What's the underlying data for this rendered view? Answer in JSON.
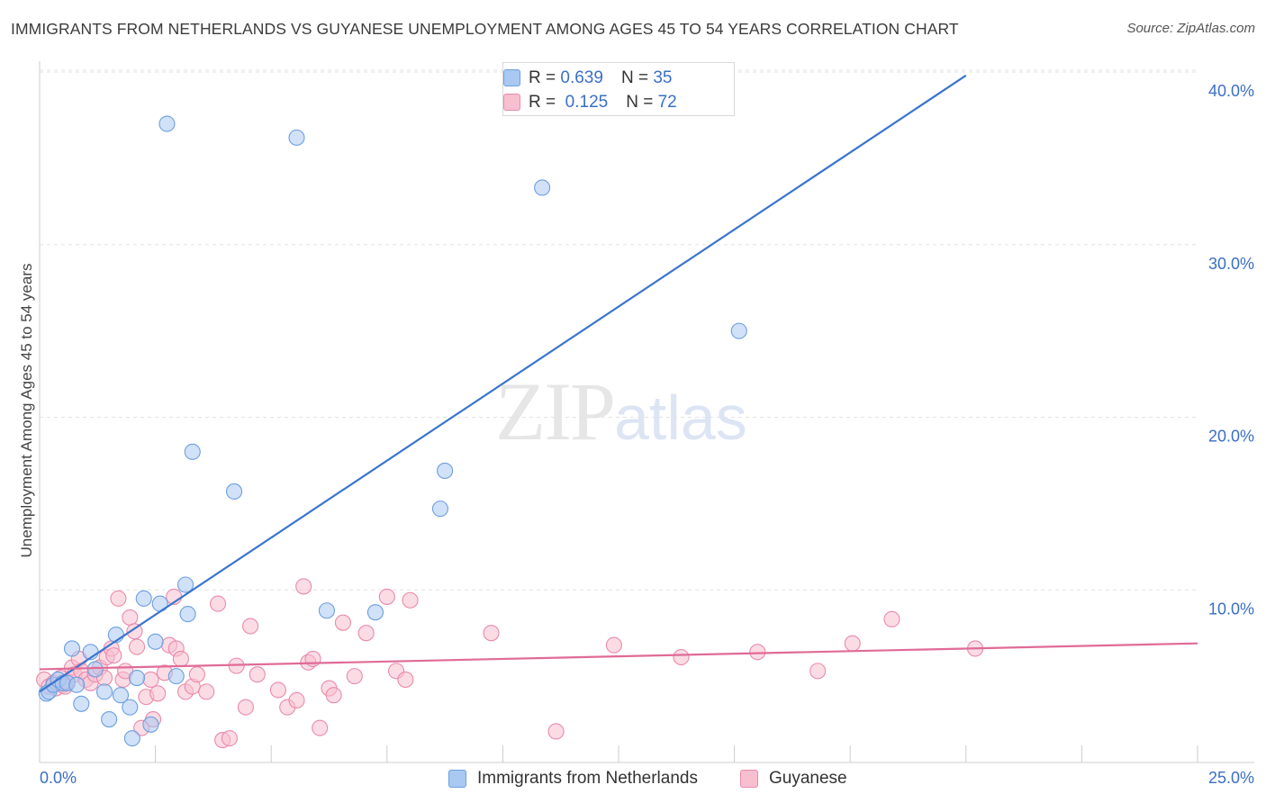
{
  "header": {
    "title": "IMMIGRANTS FROM NETHERLANDS VS GUYANESE UNEMPLOYMENT AMONG AGES 45 TO 54 YEARS CORRELATION CHART",
    "source": "Source: ZipAtlas.com"
  },
  "watermark": {
    "zip": "ZIP",
    "atlas": "atlas"
  },
  "legend_top": {
    "rows": [
      {
        "r_label": "R =",
        "r_value": "0.639",
        "n_label": "N =",
        "n_value": "35"
      },
      {
        "r_label": "R =",
        "r_value": "0.125",
        "n_label": "N =",
        "n_value": "72"
      }
    ]
  },
  "colors": {
    "blue_fill": "#a9c8f2",
    "blue_stroke": "#6d9fe0",
    "blue_line": "#3a75cc",
    "pink_fill": "#f7bfd0",
    "pink_stroke": "#e98aab",
    "pink_line": "#e06b96",
    "grid": "#e3e3e3",
    "tick_label": "#3a6fc4"
  },
  "chart_data": {
    "type": "scatter",
    "title": "IMMIGRANTS FROM NETHERLANDS VS GUYANESE UNEMPLOYMENT AMONG AGES 45 TO 54 YEARS CORRELATION CHART",
    "xlabel": "",
    "ylabel": "Unemployment Among Ages 45 to 54 years",
    "xlim": [
      0,
      25
    ],
    "ylim": [
      0,
      40
    ],
    "x_tick_labels": [
      "0.0%",
      "25.0%"
    ],
    "y_ticks": [
      10,
      20,
      30,
      40
    ],
    "y_tick_labels": [
      "10.0%",
      "20.0%",
      "30.0%",
      "40.0%"
    ],
    "legend_placement": "top-center",
    "series": [
      {
        "name": "Immigrants from Netherlands",
        "color": "blue",
        "r": 0.639,
        "n": 35,
        "trendline": {
          "x": [
            0,
            20
          ],
          "y": [
            4.1,
            39.8
          ]
        },
        "points": [
          [
            0.15,
            4.0
          ],
          [
            0.2,
            4.1
          ],
          [
            0.3,
            4.5
          ],
          [
            0.4,
            4.8
          ],
          [
            0.5,
            4.6
          ],
          [
            0.6,
            4.6
          ],
          [
            0.7,
            6.6
          ],
          [
            0.8,
            4.5
          ],
          [
            0.9,
            3.4
          ],
          [
            1.1,
            6.4
          ],
          [
            1.2,
            5.4
          ],
          [
            1.4,
            4.1
          ],
          [
            1.5,
            2.5
          ],
          [
            1.65,
            7.4
          ],
          [
            1.75,
            3.9
          ],
          [
            1.95,
            3.2
          ],
          [
            2.0,
            1.4
          ],
          [
            2.1,
            4.9
          ],
          [
            2.25,
            9.5
          ],
          [
            2.4,
            2.2
          ],
          [
            2.5,
            7.0
          ],
          [
            2.6,
            9.2
          ],
          [
            2.75,
            37.0
          ],
          [
            2.95,
            5.0
          ],
          [
            3.15,
            10.3
          ],
          [
            3.2,
            8.6
          ],
          [
            3.3,
            18.0
          ],
          [
            4.2,
            15.7
          ],
          [
            5.55,
            36.2
          ],
          [
            6.2,
            8.8
          ],
          [
            7.25,
            8.7
          ],
          [
            8.65,
            14.7
          ],
          [
            8.75,
            16.9
          ],
          [
            10.85,
            33.3
          ],
          [
            15.1,
            25.0
          ]
        ]
      },
      {
        "name": "Guyanese",
        "color": "pink",
        "r": 0.125,
        "n": 72,
        "trendline": {
          "x": [
            0,
            25
          ],
          "y": [
            5.4,
            6.9
          ]
        },
        "points": [
          [
            0.1,
            4.8
          ],
          [
            0.2,
            4.4
          ],
          [
            0.3,
            4.6
          ],
          [
            0.35,
            4.3
          ],
          [
            0.45,
            4.9
          ],
          [
            0.5,
            4.5
          ],
          [
            0.6,
            4.7
          ],
          [
            0.7,
            5.5
          ],
          [
            0.75,
            5.1
          ],
          [
            0.85,
            6.0
          ],
          [
            0.9,
            5.3
          ],
          [
            1.0,
            4.8
          ],
          [
            1.1,
            4.6
          ],
          [
            1.2,
            5.1
          ],
          [
            1.3,
            5.5
          ],
          [
            1.4,
            4.9
          ],
          [
            1.45,
            6.1
          ],
          [
            1.55,
            6.6
          ],
          [
            1.6,
            6.2
          ],
          [
            1.7,
            9.5
          ],
          [
            1.8,
            4.8
          ],
          [
            1.85,
            5.3
          ],
          [
            1.95,
            8.4
          ],
          [
            2.05,
            7.6
          ],
          [
            2.1,
            6.7
          ],
          [
            2.2,
            2.0
          ],
          [
            2.3,
            3.8
          ],
          [
            2.4,
            4.8
          ],
          [
            2.45,
            2.5
          ],
          [
            2.55,
            4.0
          ],
          [
            2.7,
            5.2
          ],
          [
            2.8,
            6.8
          ],
          [
            2.9,
            9.6
          ],
          [
            2.95,
            6.6
          ],
          [
            3.05,
            6.0
          ],
          [
            3.15,
            4.1
          ],
          [
            3.3,
            4.4
          ],
          [
            3.4,
            5.1
          ],
          [
            3.6,
            4.1
          ],
          [
            3.85,
            9.2
          ],
          [
            3.95,
            1.3
          ],
          [
            4.1,
            1.4
          ],
          [
            4.25,
            5.6
          ],
          [
            4.45,
            3.2
          ],
          [
            4.55,
            7.9
          ],
          [
            4.7,
            5.1
          ],
          [
            5.15,
            4.2
          ],
          [
            5.35,
            3.2
          ],
          [
            5.55,
            3.6
          ],
          [
            5.8,
            5.8
          ],
          [
            5.9,
            6.0
          ],
          [
            6.05,
            2.0
          ],
          [
            6.25,
            4.3
          ],
          [
            6.35,
            3.9
          ],
          [
            6.55,
            8.1
          ],
          [
            6.8,
            5.0
          ],
          [
            7.05,
            7.5
          ],
          [
            7.5,
            9.6
          ],
          [
            7.7,
            5.3
          ],
          [
            7.9,
            4.8
          ],
          [
            8.0,
            9.4
          ],
          [
            9.75,
            7.5
          ],
          [
            11.15,
            1.8
          ],
          [
            12.4,
            6.8
          ],
          [
            13.85,
            6.1
          ],
          [
            15.5,
            6.4
          ],
          [
            16.8,
            5.3
          ],
          [
            17.55,
            6.9
          ],
          [
            18.4,
            8.3
          ],
          [
            20.2,
            6.6
          ],
          [
            5.7,
            10.2
          ],
          [
            0.55,
            4.4
          ]
        ]
      }
    ]
  },
  "bottom_legend": {
    "items": [
      "Immigrants from Netherlands",
      "Guyanese"
    ]
  }
}
